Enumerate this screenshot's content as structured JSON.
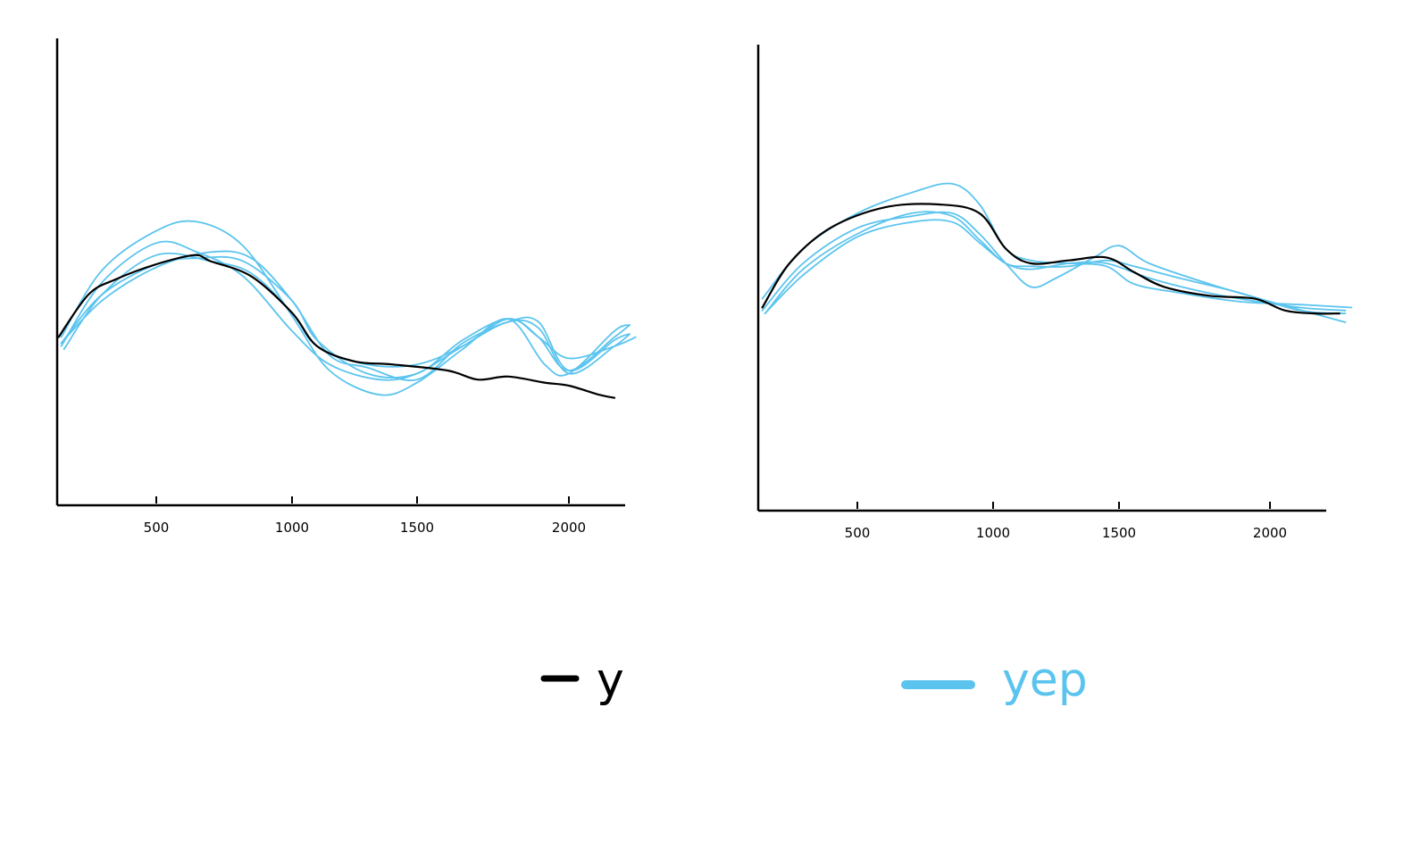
{
  "chart_data": [
    {
      "type": "line",
      "xlim": [
        140,
        2200
      ],
      "ylim": [
        0,
        1
      ],
      "x_ticks": [
        500,
        1000,
        1500,
        2000
      ],
      "x_tick_labels": [
        "500",
        "1000",
        "1500",
        "2000"
      ],
      "series": [
        {
          "name": "y",
          "color": "#000000",
          "x": [
            140,
            250,
            350,
            500,
            640,
            700,
            850,
            1000,
            1100,
            1250,
            1400,
            1600,
            1700,
            1800,
            1920,
            2000,
            2100,
            2150
          ],
          "y": [
            0.36,
            0.5,
            0.55,
            0.6,
            0.63,
            0.61,
            0.56,
            0.44,
            0.33,
            0.28,
            0.27,
            0.25,
            0.22,
            0.23,
            0.21,
            0.2,
            0.17,
            0.16
          ]
        },
        {
          "name": "yep",
          "color": "#5bc4ee",
          "x": [
            150,
            300,
            500,
            650,
            820,
            1000,
            1150,
            1350,
            1500,
            1650,
            1800,
            1920,
            2000,
            2150,
            2200
          ],
          "y": [
            0.36,
            0.58,
            0.71,
            0.74,
            0.66,
            0.43,
            0.25,
            0.17,
            0.21,
            0.32,
            0.42,
            0.27,
            0.24,
            0.38,
            0.4
          ]
        },
        {
          "name": "yep",
          "color": "#5bc4ee",
          "x": [
            150,
            300,
            500,
            650,
            820,
            1000,
            1150,
            1350,
            1500,
            1650,
            1800,
            1900,
            2000,
            2150,
            2200
          ],
          "y": [
            0.33,
            0.54,
            0.67,
            0.64,
            0.56,
            0.38,
            0.27,
            0.22,
            0.24,
            0.33,
            0.41,
            0.39,
            0.24,
            0.33,
            0.37
          ]
        },
        {
          "name": "yep",
          "color": "#5bc4ee",
          "x": [
            150,
            300,
            500,
            650,
            820,
            1000,
            1100,
            1300,
            1500,
            1650,
            1800,
            1900,
            2000,
            2150,
            2200
          ],
          "y": [
            0.34,
            0.5,
            0.6,
            0.62,
            0.61,
            0.48,
            0.35,
            0.24,
            0.24,
            0.35,
            0.42,
            0.36,
            0.25,
            0.36,
            0.4
          ]
        },
        {
          "name": "yep",
          "color": "#5bc4ee",
          "x": [
            150,
            300,
            500,
            700,
            850,
            1000,
            1150,
            1300,
            1500,
            1650,
            1800,
            1900,
            2000,
            2150,
            2200
          ],
          "y": [
            0.34,
            0.48,
            0.59,
            0.64,
            0.62,
            0.48,
            0.3,
            0.26,
            0.22,
            0.34,
            0.41,
            0.41,
            0.25,
            0.35,
            0.37
          ]
        },
        {
          "name": "yep",
          "color": "#5bc4ee",
          "x": [
            160,
            300,
            500,
            700,
            850,
            1000,
            1100,
            1300,
            1500,
            1650,
            1800,
            1900,
            2000,
            2150,
            2220
          ],
          "y": [
            0.32,
            0.5,
            0.63,
            0.61,
            0.57,
            0.44,
            0.33,
            0.27,
            0.27,
            0.33,
            0.42,
            0.36,
            0.29,
            0.33,
            0.36
          ]
        }
      ]
    },
    {
      "type": "line",
      "xlim": [
        140,
        2200
      ],
      "ylim": [
        0,
        1
      ],
      "x_ticks": [
        500,
        1000,
        1500,
        2000
      ],
      "x_tick_labels": [
        "500",
        "1000",
        "1500",
        "2000"
      ],
      "series": [
        {
          "name": "y",
          "color": "#000000",
          "x": [
            150,
            250,
            400,
            600,
            800,
            950,
            1050,
            1150,
            1300,
            1450,
            1550,
            1650,
            1800,
            1950,
            2050,
            2150,
            2230
          ],
          "y": [
            0.35,
            0.5,
            0.62,
            0.69,
            0.7,
            0.67,
            0.55,
            0.5,
            0.51,
            0.52,
            0.47,
            0.42,
            0.39,
            0.38,
            0.34,
            0.33,
            0.33
          ]
        },
        {
          "name": "yep",
          "color": "#5bc4ee",
          "x": [
            150,
            300,
            500,
            700,
            850,
            950,
            1050,
            1150,
            1300,
            1450,
            1550,
            1700,
            1900,
            2100,
            2270
          ],
          "y": [
            0.38,
            0.55,
            0.67,
            0.74,
            0.77,
            0.7,
            0.55,
            0.51,
            0.5,
            0.49,
            0.43,
            0.4,
            0.37,
            0.36,
            0.35
          ]
        },
        {
          "name": "yep",
          "color": "#5bc4ee",
          "x": [
            150,
            300,
            500,
            700,
            850,
            950,
            1050,
            1150,
            1250,
            1400,
            1500,
            1600,
            1800,
            2000,
            2250
          ],
          "y": [
            0.34,
            0.5,
            0.62,
            0.66,
            0.67,
            0.6,
            0.5,
            0.42,
            0.45,
            0.52,
            0.56,
            0.5,
            0.43,
            0.37,
            0.3
          ]
        },
        {
          "name": "yep",
          "color": "#5bc4ee",
          "x": [
            160,
            300,
            500,
            700,
            850,
            950,
            1050,
            1150,
            1300,
            1450,
            1550,
            1700,
            1900,
            2100,
            2250
          ],
          "y": [
            0.33,
            0.48,
            0.6,
            0.67,
            0.66,
            0.58,
            0.5,
            0.49,
            0.49,
            0.51,
            0.49,
            0.45,
            0.4,
            0.34,
            0.33
          ]
        },
        {
          "name": "yep",
          "color": "#5bc4ee",
          "x": [
            160,
            300,
            500,
            700,
            850,
            950,
            1050,
            1150,
            1300,
            1450,
            1600,
            1750,
            1900,
            2100,
            2250
          ],
          "y": [
            0.33,
            0.46,
            0.59,
            0.64,
            0.64,
            0.57,
            0.5,
            0.48,
            0.5,
            0.5,
            0.45,
            0.41,
            0.38,
            0.35,
            0.34
          ]
        }
      ]
    }
  ],
  "legend": {
    "items": [
      {
        "label": "y",
        "color": "#000000"
      },
      {
        "label": "yep",
        "color": "#5bc4ee"
      }
    ]
  }
}
